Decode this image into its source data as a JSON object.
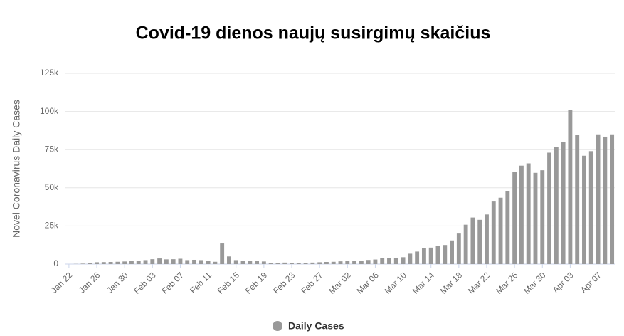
{
  "chart_data": {
    "type": "bar",
    "title": "Covid-19 dienos naujų susirgimų skaičius",
    "y_label": "Novel Coronavirus Daily Cases",
    "categories": [
      "Jan 22",
      null,
      null,
      null,
      "Jan 26",
      null,
      null,
      null,
      "Jan 30",
      null,
      null,
      null,
      "Feb 03",
      null,
      null,
      null,
      "Feb 07",
      null,
      null,
      null,
      "Feb 11",
      null,
      null,
      null,
      "Feb 15",
      null,
      null,
      null,
      "Feb 19",
      null,
      null,
      null,
      "Feb 23",
      null,
      null,
      null,
      "Feb 27",
      null,
      null,
      null,
      "Mar 02",
      null,
      null,
      null,
      "Mar 06",
      null,
      null,
      null,
      "Mar 10",
      null,
      null,
      null,
      "Mar 14",
      null,
      null,
      null,
      "Mar 18",
      null,
      null,
      null,
      "Mar 22",
      null,
      null,
      null,
      "Mar 26",
      null,
      null,
      null,
      "Mar 30",
      null,
      null,
      null,
      "Apr 03",
      null,
      null,
      null,
      "Apr 07",
      null,
      null
    ],
    "series": [
      {
        "name": "Daily Cases",
        "color": "#999999",
        "values": [
          0,
          100,
          300,
          500,
          1200,
          1300,
          1400,
          1500,
          1700,
          2000,
          2100,
          2600,
          3200,
          3700,
          3100,
          3200,
          3500,
          2600,
          2800,
          2600,
          2000,
          1500,
          13500,
          5000,
          2600,
          2100,
          2000,
          1900,
          1700,
          500,
          800,
          1000,
          800,
          500,
          900,
          1000,
          1200,
          1400,
          1500,
          1800,
          1900,
          2200,
          2300,
          2700,
          3000,
          3800,
          4000,
          4200,
          4500,
          6800,
          8200,
          10500,
          10800,
          12100,
          12500,
          15500,
          20000,
          25800,
          30500,
          29000,
          32500,
          41000,
          43500,
          48000,
          60500,
          64500,
          66000,
          59800,
          61500,
          73000,
          76500,
          79800,
          101000,
          84500,
          71000,
          74000,
          85000,
          83500,
          85000
        ]
      }
    ],
    "ylim": [
      0,
      125000
    ],
    "yticks": [
      0,
      {
        "value": 25000,
        "label": "25k"
      },
      {
        "value": 50000,
        "label": "50k"
      },
      {
        "value": 75000,
        "label": "75k"
      },
      {
        "value": 100000,
        "label": "100k"
      },
      {
        "value": 125000,
        "label": "125k"
      }
    ],
    "grid": true,
    "legend": "bottom"
  }
}
